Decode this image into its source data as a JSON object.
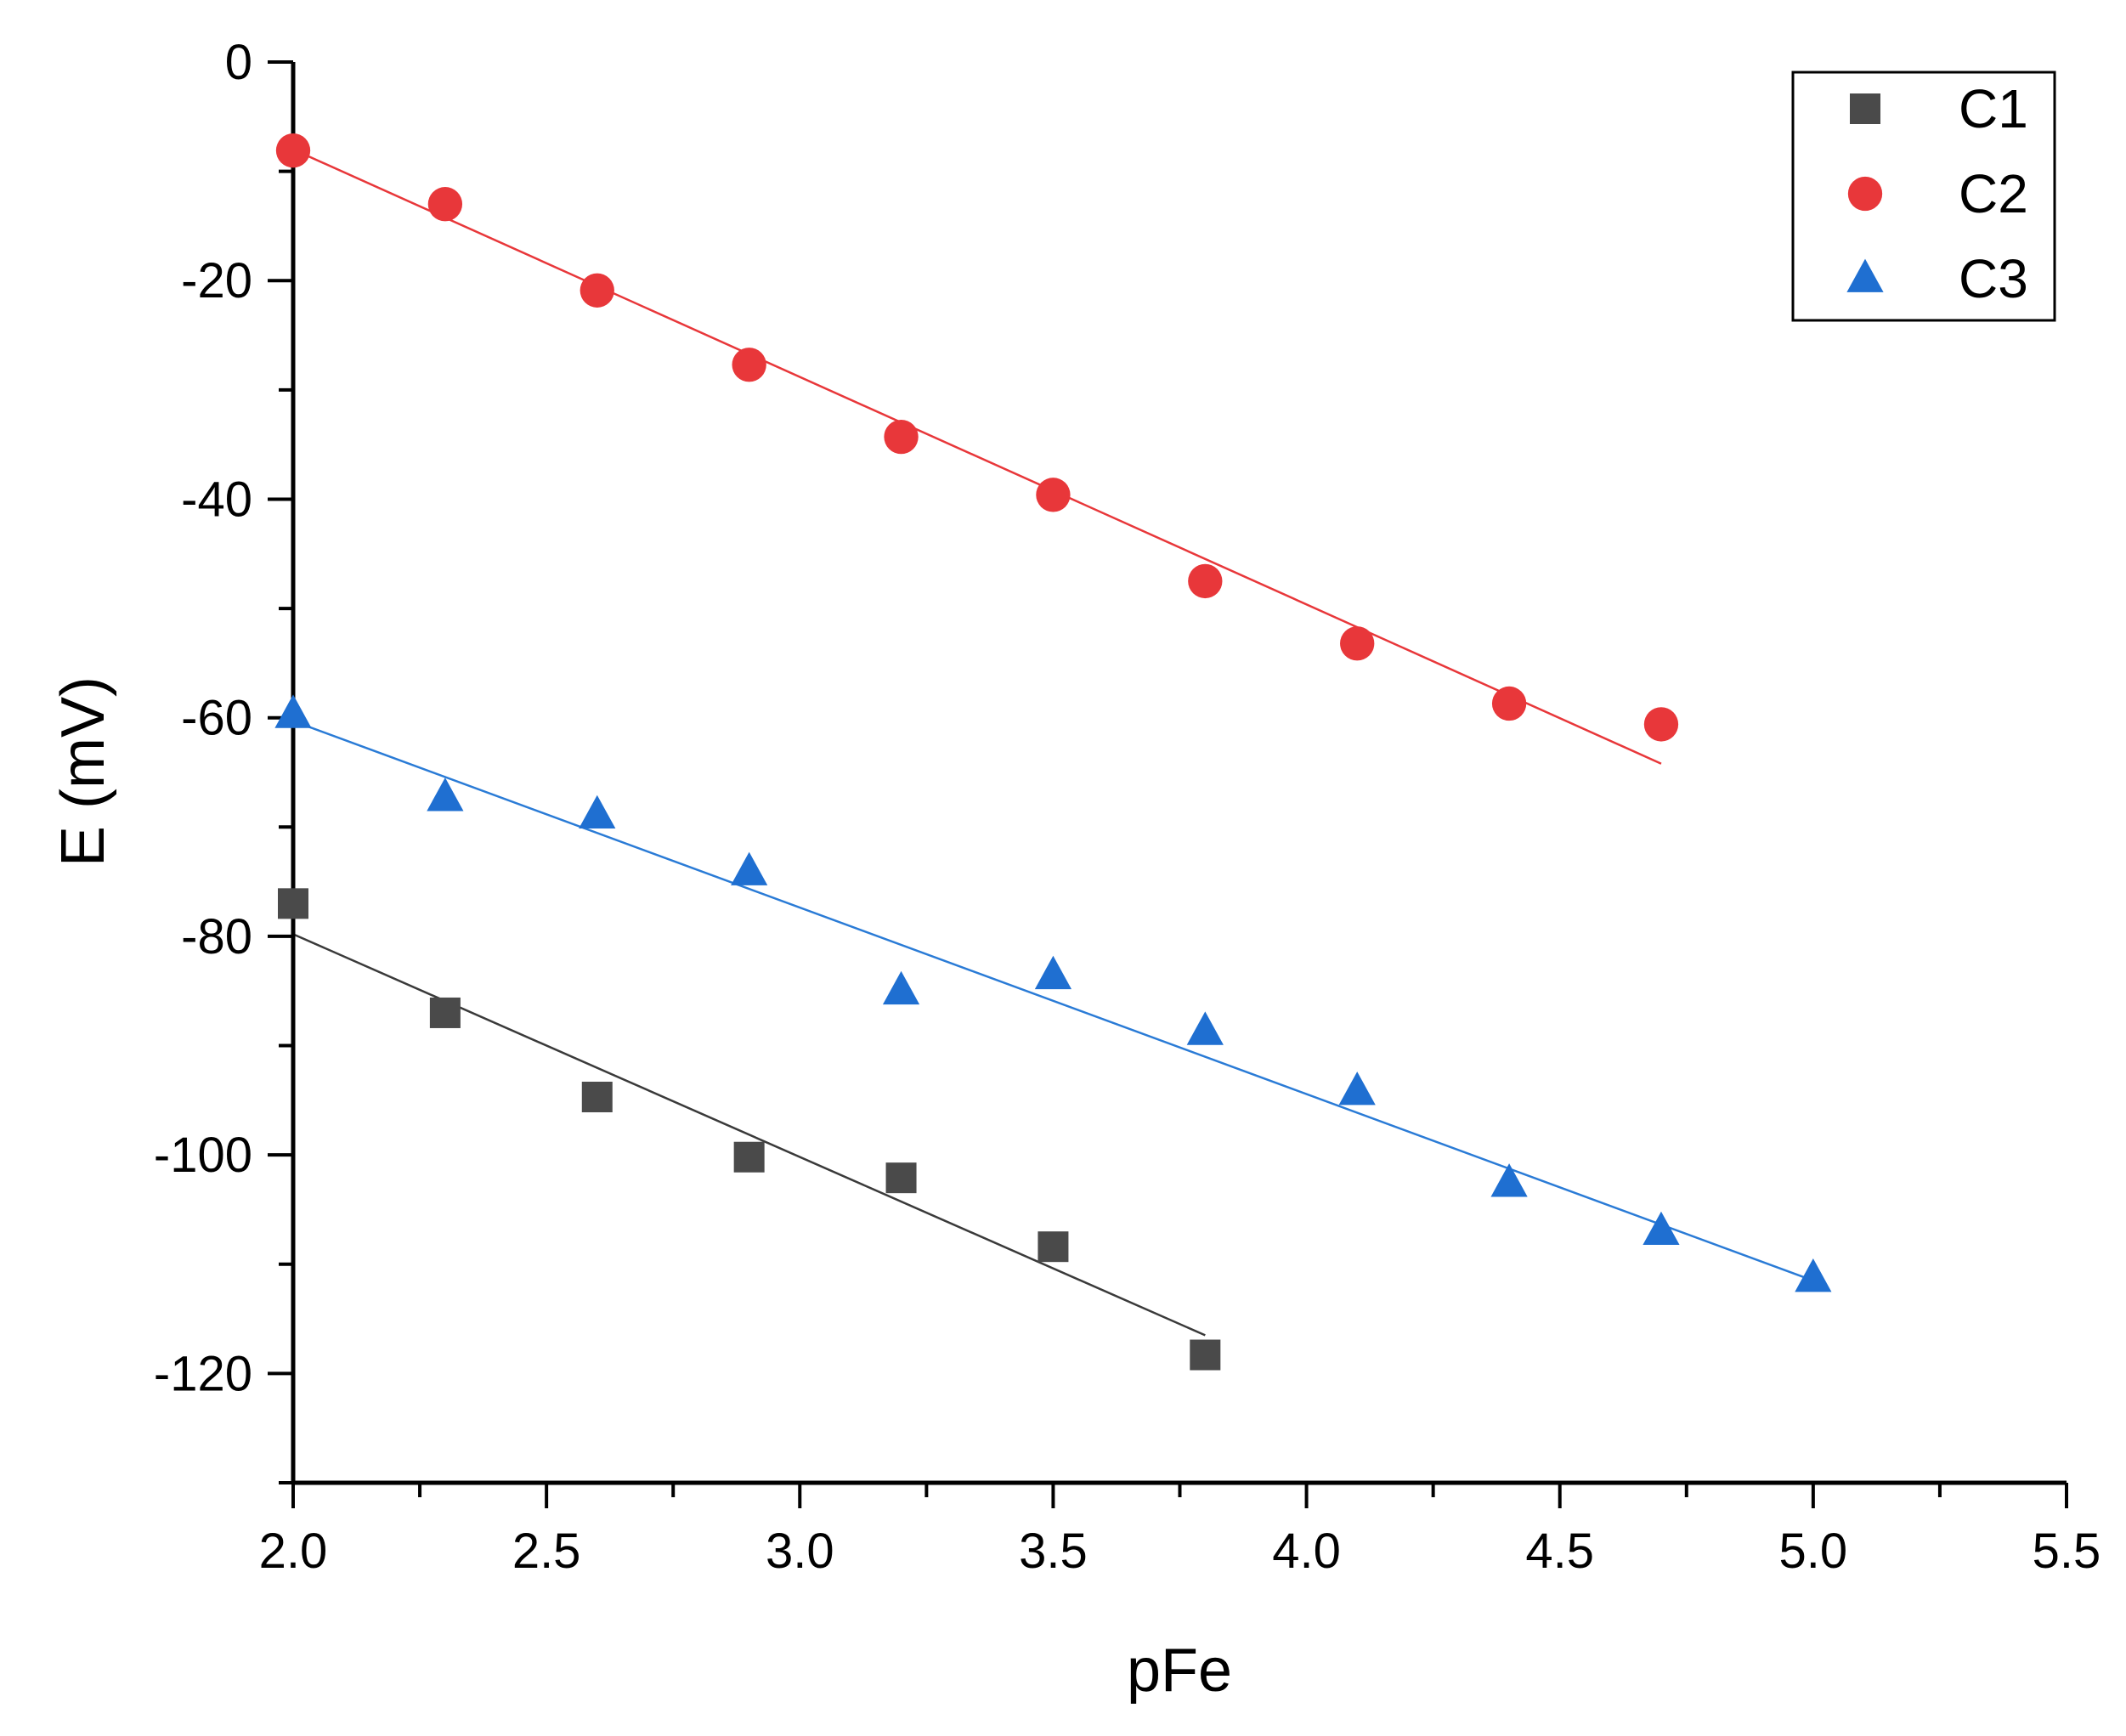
{
  "chart_data": {
    "type": "scatter",
    "title": "",
    "xlabel": "pFe",
    "ylabel": "E (mV)",
    "xlim": [
      2.0,
      5.5
    ],
    "ylim": [
      -130,
      0
    ],
    "xticks": [
      2.0,
      2.5,
      3.0,
      3.5,
      4.0,
      4.5,
      5.0,
      5.5
    ],
    "xtick_labels": [
      "2.0",
      "2.5",
      "3.0",
      "3.5",
      "4.0",
      "4.5",
      "5.0",
      "5.5"
    ],
    "yticks": [
      0,
      -20,
      -40,
      -60,
      -80,
      -100,
      -120
    ],
    "ytick_labels": [
      "0",
      "-20",
      "-40",
      "-60",
      "-80",
      "-100",
      "-120"
    ],
    "grid": false,
    "legend_position": "top-right",
    "series": [
      {
        "name": "C1",
        "marker": "square",
        "color": "#4a4a4a",
        "line_color": "#3a3a3a",
        "x": [
          2.0,
          2.3,
          2.6,
          2.9,
          3.2,
          3.5,
          3.8
        ],
        "y": [
          -77,
          -87,
          -94.7,
          -100.2,
          -102.1,
          -108.4,
          -118.3
        ],
        "fit": {
          "x": [
            2.0,
            3.8
          ],
          "y": [
            -79.8,
            -116.5
          ]
        }
      },
      {
        "name": "C2",
        "marker": "circle",
        "color": "#e8373a",
        "line_color": "#e8373a",
        "x": [
          2.0,
          2.3,
          2.6,
          2.9,
          3.2,
          3.5,
          3.8,
          4.1,
          4.4,
          4.7
        ],
        "y": [
          -8.1,
          -13,
          -20.9,
          -27.7,
          -34.3,
          -39.6,
          -47.5,
          -53.2,
          -58.7,
          -60.6
        ],
        "fit": {
          "x": [
            2.0,
            4.7
          ],
          "y": [
            -8.0,
            -64.2
          ]
        }
      },
      {
        "name": "C3",
        "marker": "triangle",
        "color": "#1f6fd1",
        "line_color": "#2a7bd6",
        "x": [
          2.0,
          2.3,
          2.6,
          2.9,
          3.2,
          3.5,
          3.8,
          4.1,
          4.4,
          4.7,
          5.0
        ],
        "y": [
          -59.7,
          -67.3,
          -68.9,
          -74.1,
          -85,
          -83.6,
          -88.7,
          -94.2,
          -102.6,
          -107,
          -111.3
        ],
        "fit": {
          "x": [
            2.0,
            5.0
          ],
          "y": [
            -60.3,
            -111.5
          ]
        }
      }
    ]
  }
}
